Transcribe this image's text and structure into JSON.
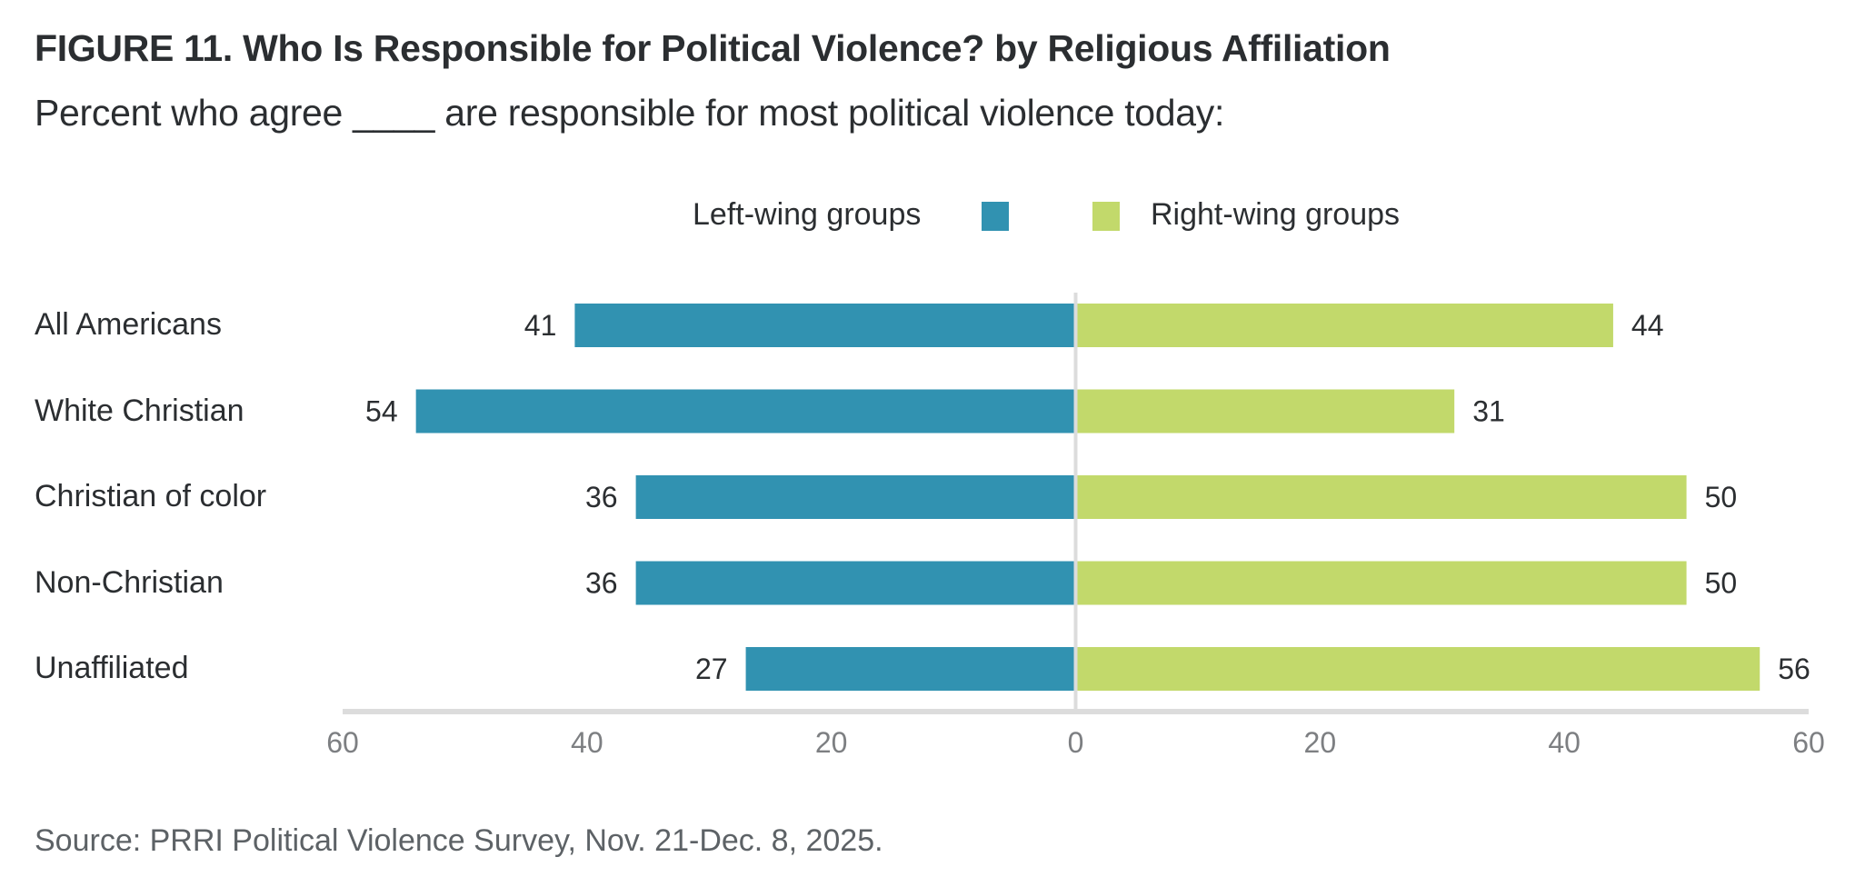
{
  "chart_data": {
    "type": "bar",
    "orientation": "horizontal-diverging",
    "title": "FIGURE 11.  Who Is Responsible for Political Violence? by Religious Affiliation",
    "subtitle": "Percent who agree ____ are responsible for most political violence today:",
    "categories": [
      "All Americans",
      "White Christian",
      "Christian of color",
      "Non-Christian",
      "Unaffiliated"
    ],
    "series": [
      {
        "name": "Left-wing groups",
        "color": "#3192b1",
        "direction": "left",
        "values": [
          41,
          54,
          36,
          36,
          27
        ]
      },
      {
        "name": "Right-wing groups",
        "color": "#c2d96b",
        "direction": "right",
        "values": [
          44,
          31,
          50,
          50,
          56
        ]
      }
    ],
    "xlim": [
      -60,
      60
    ],
    "xticks": [
      -60,
      -40,
      -20,
      0,
      20,
      40,
      60
    ],
    "xtick_labels": [
      "60",
      "40",
      "20",
      "0",
      "20",
      "40",
      "60"
    ],
    "xlabel": "",
    "ylabel": "",
    "grid": false,
    "legend_position": "top-center",
    "source": "Source: PRRI Political Violence Survey, Nov. 21-Dec. 8, 2025."
  },
  "colors": {
    "axis": "#dcdcdc",
    "text": "#2b2e31",
    "tick": "#7d7f82",
    "source": "#5d6266"
  }
}
